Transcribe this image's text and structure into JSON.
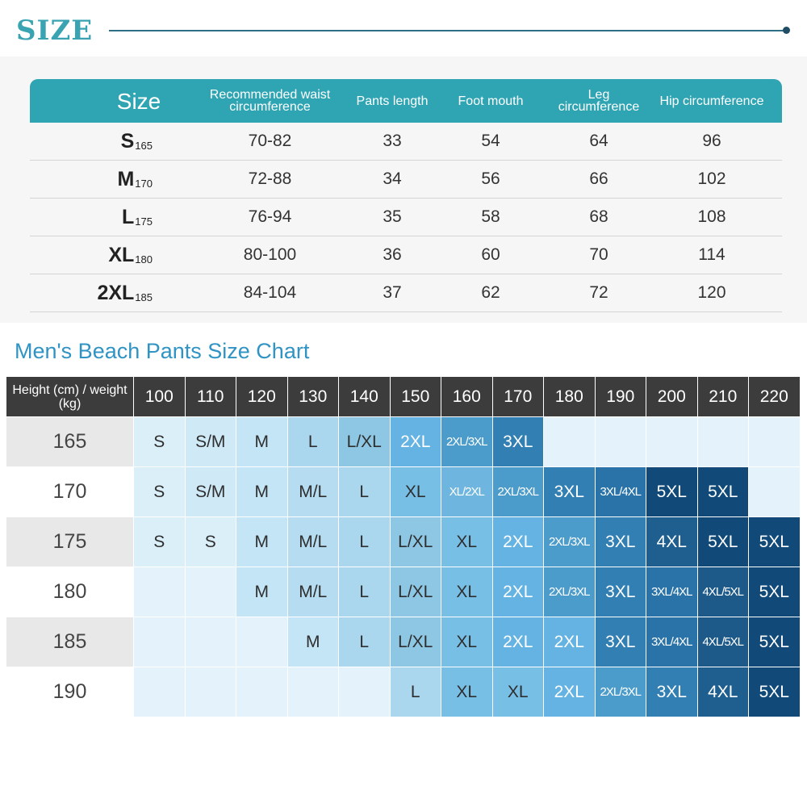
{
  "header": {
    "title": "SIZE"
  },
  "size_table": {
    "headers": [
      "Size",
      "Recommended waist circumference",
      "Pants length",
      "Foot mouth",
      "Leg circumference",
      "Hip circumference"
    ],
    "rows": [
      {
        "size": "S",
        "sub": "165",
        "waist": "70-82",
        "length": "33",
        "foot": "54",
        "leg": "64",
        "hip": "96"
      },
      {
        "size": "M",
        "sub": "170",
        "waist": "72-88",
        "length": "34",
        "foot": "56",
        "leg": "66",
        "hip": "102"
      },
      {
        "size": "L",
        "sub": "175",
        "waist": "76-94",
        "length": "35",
        "foot": "58",
        "leg": "68",
        "hip": "108"
      },
      {
        "size": "XL",
        "sub": "180",
        "waist": "80-100",
        "length": "36",
        "foot": "60",
        "leg": "70",
        "hip": "114"
      },
      {
        "size": "2XL",
        "sub": "185",
        "waist": "84-104",
        "length": "37",
        "foot": "62",
        "leg": "72",
        "hip": "120"
      }
    ]
  },
  "size_chart": {
    "title": "Men's Beach Pants Size Chart",
    "corner": "Height (cm) / weight (kg)",
    "weights": [
      "100",
      "110",
      "120",
      "130",
      "140",
      "150",
      "160",
      "170",
      "180",
      "190",
      "200",
      "210",
      "220"
    ],
    "heights": [
      "165",
      "170",
      "175",
      "180",
      "185",
      "190"
    ],
    "cells": [
      [
        "S",
        "S/M",
        "M",
        "L",
        "L/XL",
        "2XL",
        "2XL/3XL",
        "3XL",
        "",
        "",
        "",
        "",
        ""
      ],
      [
        "S",
        "S/M",
        "M",
        "M/L",
        "L",
        "XL",
        "XL/2XL",
        "2XL/3XL",
        "3XL",
        "3XL/4XL",
        "5XL",
        "5XL",
        ""
      ],
      [
        "S",
        "S",
        "M",
        "M/L",
        "L",
        "L/XL",
        "XL",
        "2XL",
        "2XL/3XL",
        "3XL",
        "4XL",
        "5XL",
        "5XL"
      ],
      [
        "",
        "",
        "M",
        "M/L",
        "L",
        "L/XL",
        "XL",
        "2XL",
        "2XL/3XL",
        "3XL",
        "3XL/4XL",
        "4XL/5XL",
        "5XL"
      ],
      [
        "",
        "",
        "",
        "M",
        "L",
        "L/XL",
        "XL",
        "2XL",
        "2XL",
        "3XL",
        "3XL/4XL",
        "4XL/5XL",
        "5XL"
      ],
      [
        "",
        "",
        "",
        "",
        "",
        "L",
        "XL",
        "XL",
        "2XL",
        "2XL/3XL",
        "3XL",
        "4XL",
        "5XL"
      ]
    ],
    "colors": {
      "header_bg": "#3c3c3c",
      "row_header_alt": "#e8e8e8",
      "empty": "#e4f3fb",
      "S": "#dbeff9",
      "S/M": "#cfe9f7",
      "M": "#c4e5f6",
      "L": "#aad6ee",
      "M/L": "#b5dcf0",
      "L/XL": "#8ec7e3",
      "XL": "#78bfe6",
      "XL/2XL": "#6eb6df",
      "2XL": "#64b3e2",
      "2XL/3XL": "#4c9ccb",
      "3XL": "#327fb3",
      "3XL/4XL": "#2a73a8",
      "4XL": "#1f5f90",
      "4XL/5XL": "#1d5a8a",
      "5XL": "#114a78"
    }
  }
}
